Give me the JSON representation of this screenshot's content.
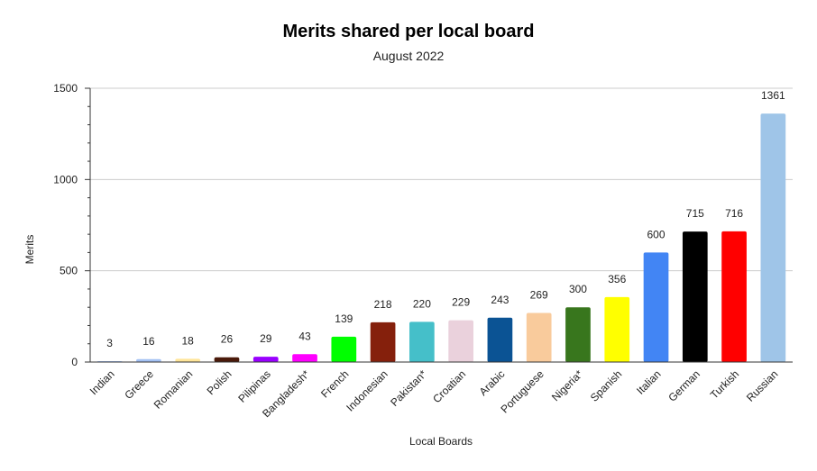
{
  "chart_data": {
    "type": "bar",
    "title": "Merits shared per local board",
    "subtitle": "August 2022",
    "xlabel": "Local Boards",
    "ylabel": "Merits",
    "ylim": [
      0,
      1500
    ],
    "yticks": [
      0,
      500,
      1000,
      1500
    ],
    "grid": true,
    "legend": "none",
    "categories": [
      "Indian",
      "Greece",
      "Romanian",
      "Polish",
      "Pilipinas",
      "Bangladesh*",
      "French",
      "Indonesian",
      "Pakistan*",
      "Croatian",
      "Arabic",
      "Portuguese",
      "Nigeria*",
      "Spanish",
      "Italian",
      "German",
      "Turkish",
      "Russian"
    ],
    "values": [
      3,
      16,
      18,
      26,
      29,
      43,
      139,
      218,
      220,
      229,
      243,
      269,
      300,
      356,
      600,
      715,
      716,
      1361
    ],
    "colors": [
      "#a4c2f4",
      "#a4c2f4",
      "#ffe599",
      "#4a1a0a",
      "#9900ff",
      "#ff00ff",
      "#00ff00",
      "#85200c",
      "#45bfc9",
      "#ead1dc",
      "#0b5394",
      "#f9cb9c",
      "#38761d",
      "#ffff00",
      "#4285f4",
      "#000000",
      "#ff0000",
      "#9fc5e8"
    ]
  }
}
